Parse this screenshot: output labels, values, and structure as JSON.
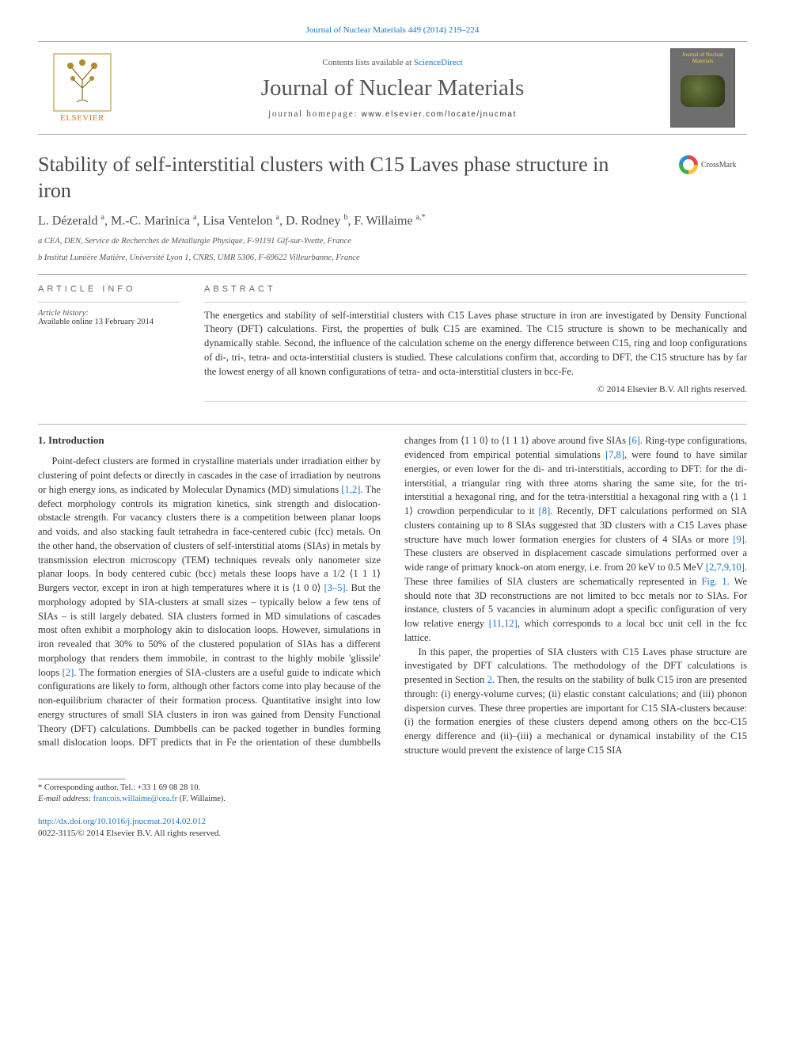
{
  "top_citation_link": "Journal of Nuclear Materials 449 (2014) 219–224",
  "masthead": {
    "contents_prefix": "Contents lists available at ",
    "contents_link": "ScienceDirect",
    "journal_name": "Journal of Nuclear Materials",
    "homepage_prefix": "journal homepage: ",
    "homepage_url": "www.elsevier.com/locate/jnucmat",
    "publisher_logo_text": "ELSEVIER",
    "cover_title": "Journal of Nuclear Materials"
  },
  "crossmark_label": "CrossMark",
  "article": {
    "title": "Stability of self-interstitial clusters with C15 Laves phase structure in iron",
    "authors_html": "L. Dézerald <sup>a</sup>, M.-C. Marinica <sup>a</sup>, Lisa Ventelon <sup>a</sup>, D. Rodney <sup>b</sup>, F. Willaime <sup>a,*</sup>",
    "affiliations": [
      "a CEA, DEN, Service de Recherches de Métallurgie Physique, F-91191 Gif-sur-Yvette, France",
      "b Institut Lumière Matière, Université Lyon 1, CNRS, UMR 5306, F-69622 Villeurbanne, France"
    ]
  },
  "info": {
    "heading": "ARTICLE INFO",
    "history_label": "Article history:",
    "history_value": "Available online 13 February 2014"
  },
  "abstract": {
    "heading": "ABSTRACT",
    "text": "The energetics and stability of self-interstitial clusters with C15 Laves phase structure in iron are investigated by Density Functional Theory (DFT) calculations. First, the properties of bulk C15 are examined. The C15 structure is shown to be mechanically and dynamically stable. Second, the influence of the calculation scheme on the energy difference between C15, ring and loop configurations of di-, tri-, tetra- and octa-interstitial clusters is studied. These calculations confirm that, according to DFT, the C15 structure has by far the lowest energy of all known configurations of tetra- and octa-interstitial clusters in bcc-Fe.",
    "copyright": "© 2014 Elsevier B.V. All rights reserved."
  },
  "section1": {
    "heading": "1. Introduction",
    "p1_pre": "Point-defect clusters are formed in crystalline materials under irradiation either by clustering of point defects or directly in cascades in the case of irradiation by neutrons or high energy ions, as indicated by Molecular Dynamics (MD) simulations ",
    "ref12": "[1,2]",
    "p1_mid1": ". The defect morphology controls its migration kinetics, sink strength and dislocation-obstacle strength. For vacancy clusters there is a competition between planar loops and voids, and also stacking fault tetrahedra in face-centered cubic (fcc) metals. On the other hand, the observation of clusters of self-interstitial atoms (SIAs) in metals by transmission electron microscopy (TEM) techniques reveals only nanometer size planar loops. In body centered cubic (bcc) metals these loops have a 1/2 ⟨1 1 1⟩ Burgers vector, except in iron at high temperatures where it is ⟨1 0 0⟩ ",
    "ref35": "[3–5]",
    "p1_mid2": ". But the morphology adopted by SIA-clusters at small sizes – typically below a few tens of SIAs – is still largely debated. SIA clusters formed in MD simulations of cascades most often exhibit a morphology akin to dislocation loops. However, simulations in iron revealed that 30% to 50% of the clustered population of SIAs has a different morphology that renders them immobile, in contrast to the highly mobile 'glissile' loops ",
    "ref2": "[2]",
    "p1_mid3": ". The formation energies of SIA-clusters are a useful guide to indicate which configurations are likely to form, although other factors come into play because of the non-equilibrium character of their formation process. Quantitative insight into low energy structures of small SIA clusters in iron was gained from Density Functional Theory (DFT) calculations. Dumbbells can be packed together in bundles forming small dislocation loops. DFT predicts that in Fe the orientation of these dumbbells changes from ⟨1 1 0⟩ to ⟨1 1 1⟩ above around five SIAs ",
    "ref6": "[6]",
    "p1_mid4": ". Ring-type configurations, evidenced from empirical potential simulations ",
    "ref78": "[7,8]",
    "p1_mid5": ", were found to have similar energies, or even lower for the di- and tri-interstitials, according to DFT: for the di-interstitial, a triangular ring with three atoms sharing the same site, for the tri-interstitial a hexagonal ring, and for the tetra-interstitial a hexagonal ring with a ⟨1 1 1⟩ crowdion perpendicular to it ",
    "ref8": "[8]",
    "p1_mid6": ". Recently, DFT calculations performed on SIA clusters containing up to 8 SIAs suggested that 3D clusters with a C15 Laves phase structure have much lower formation energies for clusters of 4 SIAs or more ",
    "ref9": "[9]",
    "p1_mid7": ". These clusters are observed in displacement cascade simulations performed over a wide range of primary knock-on atom energy, i.e. from 20 keV to 0.5 MeV ",
    "ref27910": "[2,7,9,10]",
    "p1_mid8": ". These three families of SIA clusters are schematically represented in ",
    "fig1": "Fig. 1",
    "p1_mid9": ". We should note that 3D reconstructions are not limited to bcc metals nor to SIAs. For instance, clusters of 5 vacancies in aluminum adopt a specific configuration of very low relative energy ",
    "ref1112": "[11,12]",
    "p1_end": ", which corresponds to a local bcc unit cell in the fcc lattice.",
    "p2_pre": "In this paper, the properties of SIA clusters with C15 Laves phase structure are investigated by DFT calculations. The methodology of the DFT calculations is presented in Section ",
    "sec2": "2",
    "p2_end": ". Then, the results on the stability of bulk C15 iron are presented through: (i) energy-volume curves; (ii) elastic constant calculations; and (iii) phonon dispersion curves. These three properties are important for C15 SIA-clusters because: (i) the formation energies of these clusters depend among others on the bcc-C15 energy difference and (ii)–(iii) a mechanical or dynamical instability of the C15 structure would prevent the existence of large C15 SIA"
  },
  "footnote": {
    "corr_label": "* Corresponding author. Tel.: ",
    "corr_tel": "+33 1 69 08 28 10.",
    "email_label": "E-mail address: ",
    "email": "francois.willaime@cea.fr",
    "email_person": " (F. Willaime)."
  },
  "doi": {
    "url": "http://dx.doi.org/10.1016/j.jnucmat.2014.02.012",
    "issn_line": "0022-3115/© 2014 Elsevier B.V. All rights reserved."
  },
  "colors": {
    "link": "#1874c4",
    "text": "#333333",
    "muted": "#555555",
    "rule": "#b3b3b3"
  }
}
